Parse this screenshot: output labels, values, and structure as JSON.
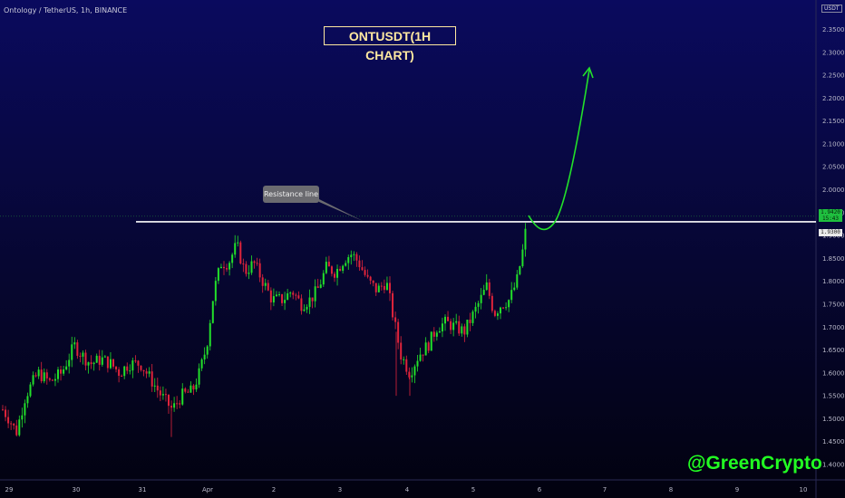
{
  "header": {
    "symbol_label": "Ontology / TetherUS, 1h, BINANCE",
    "currency_badge": "USDT"
  },
  "annotations": {
    "title": "ONTUSDT(1H CHART)",
    "callout": "Resistance line",
    "watermark": "@GreenCrypto"
  },
  "price_tags": {
    "last_price": "1.9420",
    "countdown": "15:43",
    "resistance": "1.9300"
  },
  "colors": {
    "up": "#22e02a",
    "down": "#e0243b",
    "resistance_line": "#ffffff",
    "arrow": "#22e02a",
    "title": "#ffe9a0"
  },
  "chart_data": {
    "type": "candlestick",
    "title": "ONTUSDT(1H CHART)",
    "symbol": "Ontology / TetherUS, 1h, BINANCE",
    "x_tick_labels": [
      "29",
      "30",
      "31",
      "Apr",
      "2",
      "3",
      "4",
      "5",
      "6",
      "7",
      "8",
      "9",
      "10"
    ],
    "y_tick_labels": [
      "1.4000",
      "1.4500",
      "1.5000",
      "1.5500",
      "1.6000",
      "1.6500",
      "1.7000",
      "1.7500",
      "1.8000",
      "1.8500",
      "1.9000",
      "1.9500",
      "2.0000",
      "2.0500",
      "2.1000",
      "2.1500",
      "2.2000",
      "2.2500",
      "2.3000",
      "2.3500"
    ],
    "ylim": [
      1.35,
      2.39
    ],
    "resistance_level": 1.93,
    "last_price": 1.942,
    "approx_close_path": [
      {
        "day": "29",
        "price": 1.52
      },
      {
        "day": "30",
        "price": 1.68
      },
      {
        "day": "30",
        "price": 1.61
      },
      {
        "day": "31",
        "price": 1.58
      },
      {
        "day": "31",
        "price": 1.52
      },
      {
        "day": "Apr",
        "price": 1.57
      },
      {
        "day": "Apr",
        "price": 1.87
      },
      {
        "day": "2",
        "price": 1.79
      },
      {
        "day": "2",
        "price": 1.74
      },
      {
        "day": "3",
        "price": 1.84
      },
      {
        "day": "3",
        "price": 1.82
      },
      {
        "day": "4",
        "price": 1.62
      },
      {
        "day": "4",
        "price": 1.68
      },
      {
        "day": "5",
        "price": 1.72
      },
      {
        "day": "5",
        "price": 1.8
      },
      {
        "day": "5",
        "price": 1.94
      }
    ],
    "projection": "upward arrow from resistance retest toward 2.26"
  }
}
